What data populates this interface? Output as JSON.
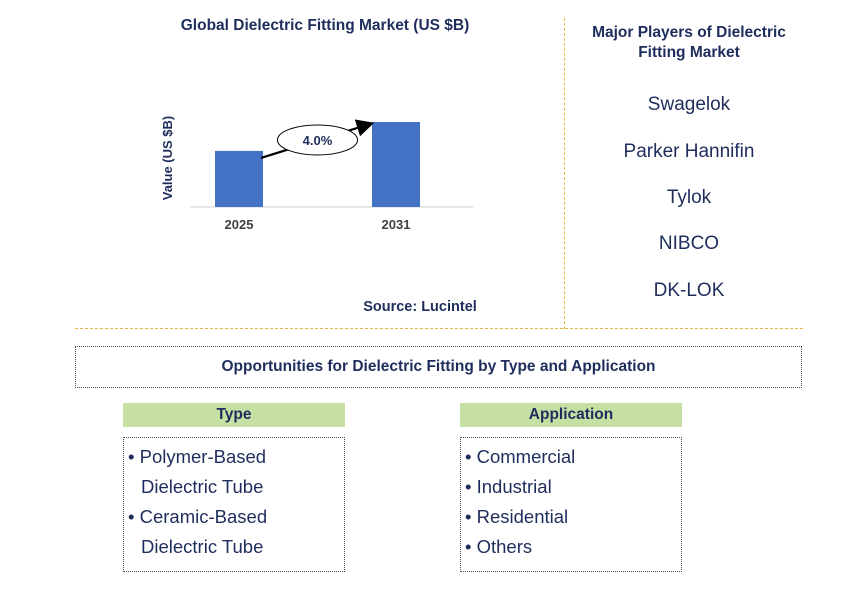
{
  "chart_data": {
    "type": "bar",
    "title": "Global Dielectric Fitting Market (US $B)",
    "ylabel": "Value (US $B)",
    "categories": [
      "2025",
      "2031"
    ],
    "values": [
      0.66,
      1.0
    ],
    "annotation": "4.0%",
    "colors": {
      "bar": "#4472c4"
    }
  },
  "source": "Source: Lucintel",
  "players": {
    "title": "Major Players of Dielectric Fitting Market",
    "items": [
      "Swagelok",
      "Parker Hannifin",
      "Tylok",
      "NIBCO",
      "DK-LOK"
    ]
  },
  "opportunities": {
    "title": "Opportunities for Dielectric Fitting by Type and Application",
    "type": {
      "header": "Type",
      "items": [
        {
          "line1": "• Polymer-Based",
          "line2": "Dielectric Tube"
        },
        {
          "line1": "• Ceramic-Based",
          "line2": "Dielectric Tube"
        }
      ]
    },
    "application": {
      "header": "Application",
      "items": [
        "• Commercial",
        "• Industrial",
        "• Residential",
        "• Others"
      ]
    }
  }
}
